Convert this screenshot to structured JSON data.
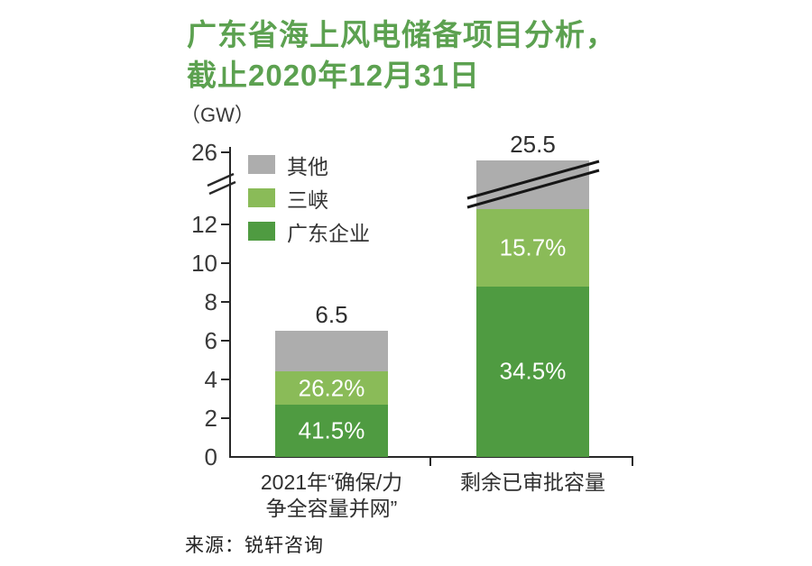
{
  "chart_data": {
    "type": "stacked-bar",
    "title_line1": "广东省海上风电储备项目分析，",
    "title_line2": "截止2020年12月31日",
    "unit_label": "（GW）",
    "categories": [
      "2021年“确保/力\n争全容量并网”",
      "剩余已审批容量"
    ],
    "totals": [
      "6.5",
      "25.5"
    ],
    "series": [
      {
        "name": "广东企业",
        "color": "#4f9b41",
        "values_gw": [
          2.7,
          8.8
        ],
        "pct_labels": [
          "41.5%",
          "34.5%"
        ]
      },
      {
        "name": "三峡",
        "color": "#8abb58",
        "values_gw": [
          1.7,
          4.0
        ],
        "pct_labels": [
          "26.2%",
          "15.7%"
        ]
      },
      {
        "name": "其他",
        "color": "#adadad",
        "values_gw": [
          2.1,
          12.7
        ],
        "pct_labels": [
          "",
          ""
        ]
      }
    ],
    "legend": [
      {
        "label": "其他",
        "color": "#adadad"
      },
      {
        "label": "三峡",
        "color": "#8abb58"
      },
      {
        "label": "广东企业",
        "color": "#4f9b41"
      }
    ],
    "y_axis": {
      "ticks": [
        0,
        2,
        4,
        6,
        8,
        10,
        12
      ],
      "break_tick": "26",
      "has_break": true
    },
    "broken_bar_index": 1,
    "source": "来源：锐轩咨询"
  }
}
